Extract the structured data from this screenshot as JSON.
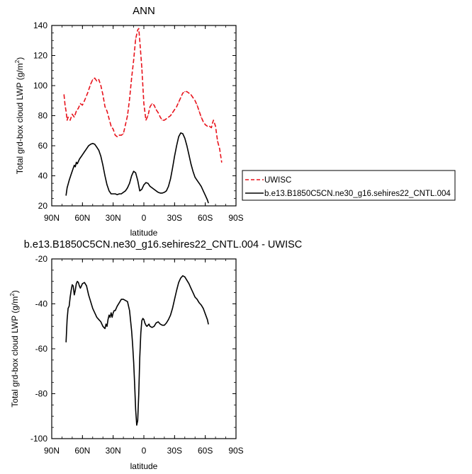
{
  "chart_data": [
    {
      "type": "line",
      "title": "ANN",
      "xlabel": "latitude",
      "ylabel_main": "Total grd-box cloud LWP (g/m",
      "ylabel_sup": "2",
      "ylabel_close": ")",
      "xlim": [
        90,
        -90
      ],
      "ylim": [
        20,
        140
      ],
      "x_ticks": [
        90,
        60,
        30,
        0,
        -30,
        -60,
        -90
      ],
      "x_tick_labels": [
        "90N",
        "60N",
        "30N",
        "0",
        "30S",
        "60S",
        "90S"
      ],
      "y_ticks": [
        20,
        40,
        60,
        80,
        100,
        120,
        140
      ],
      "y_tick_labels": [
        "20",
        "40",
        "60",
        "80",
        "100",
        "120",
        "140"
      ],
      "legend_position": "right",
      "series": [
        {
          "name": "UWISC",
          "color": "#e8121b",
          "dash": "dashed",
          "x": [
            78,
            77,
            76,
            75,
            74,
            72,
            70,
            68,
            66,
            64,
            62,
            60,
            58,
            55,
            52,
            50,
            48,
            46,
            44,
            42,
            40,
            38,
            36,
            34,
            32,
            30,
            28,
            26,
            24,
            22,
            20,
            18,
            16,
            14,
            12,
            10,
            8,
            6,
            5,
            4,
            2,
            0,
            -2,
            -4,
            -6,
            -8,
            -10,
            -12,
            -14,
            -16,
            -18,
            -20,
            -22,
            -24,
            -26,
            -28,
            -30,
            -32,
            -34,
            -36,
            -38,
            -40,
            -42,
            -44,
            -46,
            -48,
            -50,
            -52,
            -54,
            -56,
            -58,
            -60,
            -62,
            -64,
            -66,
            -67,
            -68,
            -70,
            -72,
            -74,
            -76
          ],
          "y": [
            94,
            87,
            83,
            77,
            79,
            77,
            81,
            79,
            83,
            85,
            88,
            87,
            90,
            95,
            101,
            104,
            105,
            103,
            104,
            100,
            94,
            86,
            83,
            78,
            73,
            71,
            67,
            66,
            67,
            67,
            68,
            74,
            80,
            91,
            105,
            117,
            131,
            137,
            138,
            130,
            112,
            88,
            77,
            80,
            86,
            88,
            87,
            84,
            82,
            79,
            77,
            77,
            78,
            79,
            80,
            82,
            84,
            86,
            89,
            92,
            95,
            96,
            96,
            95,
            94,
            92,
            90,
            87,
            83,
            79,
            76,
            74,
            73,
            73,
            72,
            75,
            77,
            73,
            63,
            58,
            49
          ]
        },
        {
          "name": "b.e13.B1850C5CN.ne30_g16.sehires22_CNTL.004",
          "color": "#000000",
          "dash": "solid",
          "x": [
            76,
            75,
            73,
            71,
            69,
            68,
            67,
            66,
            65,
            63,
            62,
            61,
            60,
            58,
            56,
            54,
            52,
            50,
            48,
            46,
            44,
            42,
            40,
            38,
            36,
            34,
            32,
            30,
            28,
            26,
            24,
            22,
            20,
            18,
            16,
            14,
            12,
            10,
            8,
            6,
            4,
            2,
            0,
            -2,
            -4,
            -6,
            -8,
            -10,
            -12,
            -14,
            -16,
            -18,
            -20,
            -22,
            -24,
            -26,
            -28,
            -30,
            -32,
            -34,
            -36,
            -38,
            -40,
            -42,
            -44,
            -46,
            -48,
            -50,
            -52,
            -54,
            -56,
            -58,
            -60,
            -62,
            -63
          ],
          "y": [
            27,
            32,
            37,
            41,
            45,
            47,
            46,
            49,
            48,
            51,
            52,
            53,
            54,
            56,
            58,
            60,
            61,
            61.5,
            61,
            59,
            57,
            53,
            47,
            40,
            34,
            30,
            28,
            28,
            28,
            27.5,
            28,
            28,
            29,
            30,
            32,
            35,
            40,
            43,
            42,
            37,
            30,
            31,
            34,
            35.5,
            35,
            33,
            32,
            31,
            30,
            29,
            28.5,
            28.5,
            29,
            30,
            33,
            38,
            45,
            53,
            60,
            66,
            68.5,
            68,
            65,
            60,
            54,
            48,
            43,
            39,
            37,
            35,
            33,
            30,
            27,
            24,
            22
          ]
        }
      ]
    },
    {
      "type": "line",
      "title": "b.e13.B1850C5CN.ne30_g16.sehires22_CNTL.004 - UWISC",
      "xlabel": "latitude",
      "ylabel_main": "Total grd-box cloud LWP (g/m",
      "ylabel_sup": "2",
      "ylabel_close": ")",
      "xlim": [
        90,
        -90
      ],
      "ylim": [
        -100,
        -20
      ],
      "x_ticks": [
        90,
        60,
        30,
        0,
        -30,
        -60,
        -90
      ],
      "x_tick_labels": [
        "90N",
        "60N",
        "30N",
        "0",
        "30S",
        "60S",
        "90S"
      ],
      "y_ticks": [
        -100,
        -80,
        -60,
        -40,
        -20
      ],
      "y_tick_labels": [
        "-100",
        "-80",
        "-60",
        "-40",
        "-20"
      ],
      "series": [
        {
          "color": "#000000",
          "dash": "solid",
          "x": [
            76,
            75,
            74,
            73,
            72,
            71,
            70,
            69,
            68,
            67,
            66,
            65,
            64,
            63,
            62,
            61,
            60,
            58,
            56,
            54,
            52,
            50,
            48,
            46,
            44,
            42,
            40,
            38,
            37,
            36,
            35,
            34,
            33,
            32,
            31,
            30,
            29,
            28,
            26,
            24,
            22,
            20,
            18,
            16,
            14,
            12,
            11,
            10,
            9,
            8,
            7,
            6,
            5,
            4,
            3,
            2,
            1,
            0,
            -1,
            -2,
            -3,
            -4,
            -5,
            -6,
            -8,
            -10,
            -12,
            -14,
            -16,
            -18,
            -20,
            -22,
            -24,
            -26,
            -28,
            -30,
            -32,
            -34,
            -36,
            -38,
            -40,
            -42,
            -44,
            -46,
            -48,
            -50,
            -52,
            -54,
            -56,
            -58,
            -60,
            -62,
            -63
          ],
          "y": [
            -57,
            -47,
            -42,
            -41,
            -37,
            -34,
            -31.5,
            -32,
            -36,
            -34,
            -31,
            -30,
            -30.5,
            -32,
            -33,
            -32,
            -31,
            -30.5,
            -32,
            -36,
            -39,
            -42,
            -44,
            -46,
            -47,
            -48,
            -50,
            -51,
            -49,
            -50,
            -47,
            -45,
            -46,
            -44,
            -46,
            -44,
            -43,
            -43,
            -41,
            -39.5,
            -38,
            -38,
            -38.5,
            -39,
            -43,
            -52,
            -58,
            -66,
            -76,
            -87,
            -94,
            -92,
            -80,
            -64,
            -53,
            -47.5,
            -46.5,
            -47,
            -48.5,
            -49.5,
            -50,
            -49.5,
            -49,
            -50,
            -50.5,
            -50,
            -48.5,
            -48,
            -49,
            -49.5,
            -49.5,
            -48.5,
            -47,
            -45,
            -42,
            -38,
            -34,
            -30.5,
            -28.5,
            -27.5,
            -28,
            -29.5,
            -31,
            -33,
            -35,
            -37,
            -38,
            -39.5,
            -40.5,
            -42,
            -44.5,
            -47,
            -49
          ]
        }
      ]
    }
  ]
}
